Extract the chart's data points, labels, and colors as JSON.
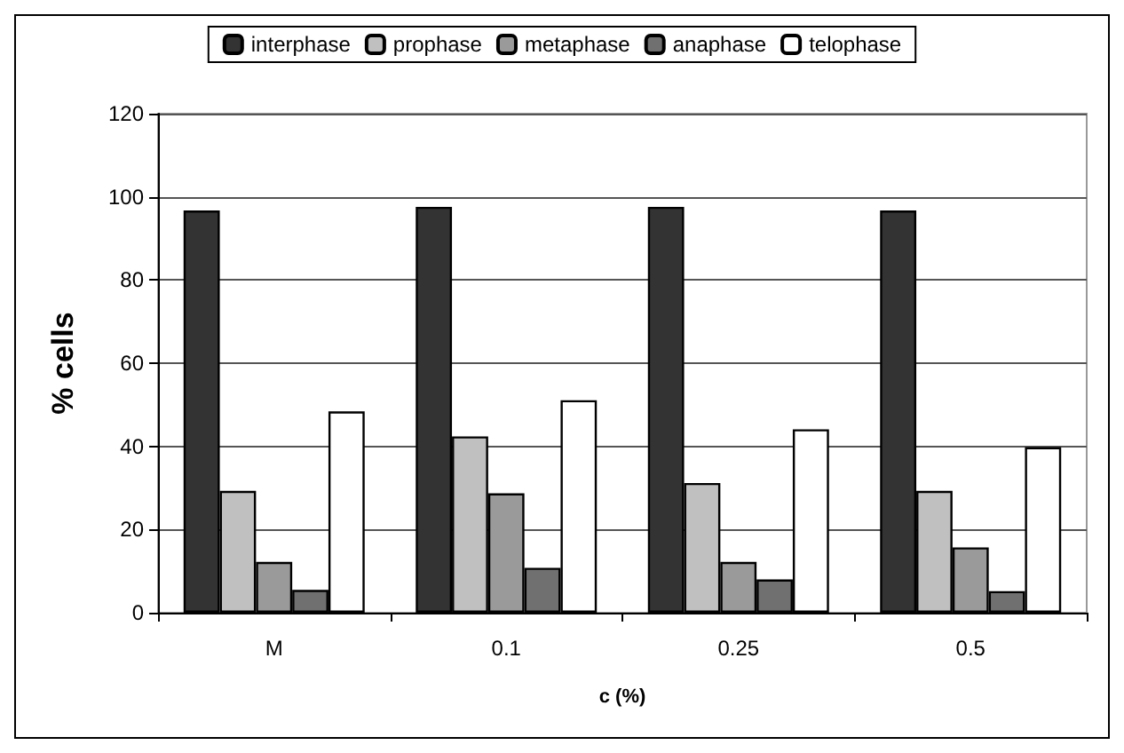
{
  "chart_data": {
    "type": "bar",
    "xlabel": "c (%)",
    "ylabel": "% cells",
    "categories": [
      "M",
      "0.1",
      "0.25",
      "0.5"
    ],
    "series": [
      {
        "name": "interphase",
        "color": "#333333",
        "values": [
          96.7,
          97.6,
          97.6,
          96.7
        ]
      },
      {
        "name": "prophase",
        "color": "#c0c0c0",
        "values": [
          29.3,
          42.4,
          31.2,
          29.3
        ]
      },
      {
        "name": "metaphase",
        "color": "#9a9a9a",
        "values": [
          12.2,
          28.7,
          12.2,
          15.7
        ]
      },
      {
        "name": "anaphase",
        "color": "#707070",
        "values": [
          5.5,
          10.8,
          8.0,
          5.2
        ]
      },
      {
        "name": "telophase",
        "color": "#ffffff",
        "values": [
          48.4,
          51.1,
          44.1,
          39.8
        ]
      }
    ],
    "ylim": [
      0,
      120
    ],
    "yticks": [
      0,
      20,
      40,
      60,
      80,
      100,
      120
    ],
    "grid": "y",
    "legend": "top"
  }
}
